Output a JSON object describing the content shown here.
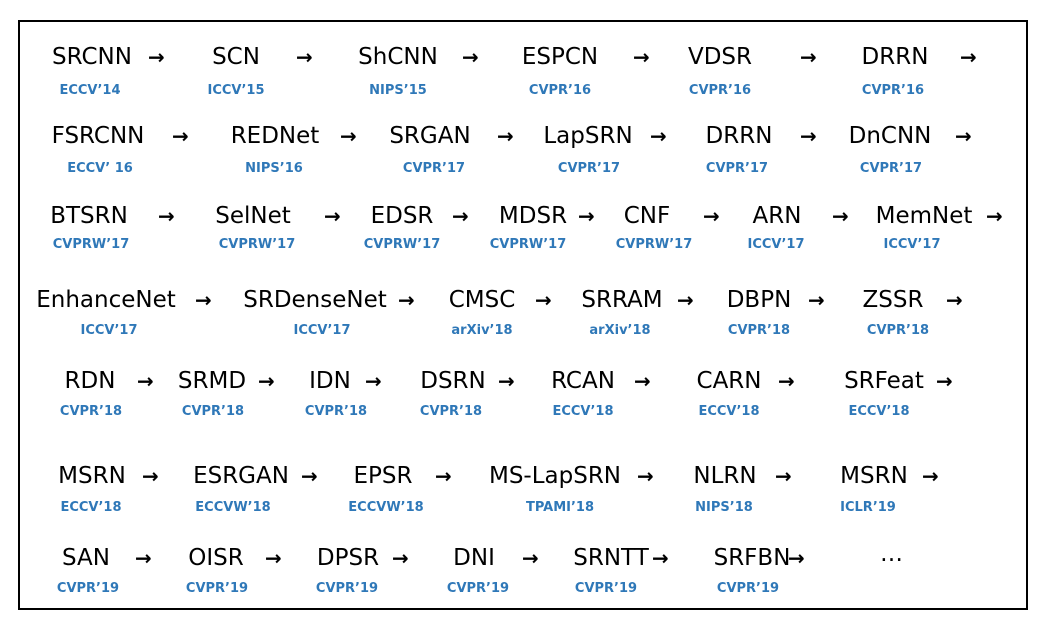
{
  "rows": [
    [
      {
        "name": "SRCNN",
        "venue": "ECCV’14"
      },
      {
        "name": "SCN",
        "venue": "ICCV’15"
      },
      {
        "name": "ShCNN",
        "venue": "NIPS’15"
      },
      {
        "name": "ESPCN",
        "venue": "CVPR’16"
      },
      {
        "name": "VDSR",
        "venue": "CVPR’16"
      },
      {
        "name": "DRRN",
        "venue": "CVPR’16"
      }
    ],
    [
      {
        "name": "FSRCNN",
        "venue": "ECCV’ 16"
      },
      {
        "name": "REDNet",
        "venue": "NIPS’16"
      },
      {
        "name": "SRGAN",
        "venue": "CVPR’17"
      },
      {
        "name": "LapSRN",
        "venue": "CVPR’17"
      },
      {
        "name": "DRRN",
        "venue": "CVPR’17"
      },
      {
        "name": "DnCNN",
        "venue": "CVPR’17"
      }
    ],
    [
      {
        "name": "BTSRN",
        "venue": "CVPRW’17"
      },
      {
        "name": "SelNet",
        "venue": "CVPRW’17"
      },
      {
        "name": "EDSR",
        "venue": "CVPRW’17"
      },
      {
        "name": "MDSR",
        "venue": "CVPRW’17"
      },
      {
        "name": "CNF",
        "venue": "CVPRW’17"
      },
      {
        "name": "ARN",
        "venue": "ICCV’17"
      },
      {
        "name": "MemNet",
        "venue": "ICCV’17"
      }
    ],
    [
      {
        "name": "EnhanceNet",
        "venue": "ICCV’17"
      },
      {
        "name": "SRDenseNet",
        "venue": "ICCV’17"
      },
      {
        "name": "CMSC",
        "venue": "arXiv’18"
      },
      {
        "name": "SRRAM",
        "venue": "arXiv’18"
      },
      {
        "name": "DBPN",
        "venue": "CVPR’18"
      },
      {
        "name": "ZSSR",
        "venue": "CVPR’18"
      }
    ],
    [
      {
        "name": "RDN",
        "venue": "CVPR’18"
      },
      {
        "name": "SRMD",
        "venue": "CVPR’18"
      },
      {
        "name": "IDN",
        "venue": "CVPR’18"
      },
      {
        "name": "DSRN",
        "venue": "CVPR’18"
      },
      {
        "name": "RCAN",
        "venue": "ECCV’18"
      },
      {
        "name": "CARN",
        "venue": "ECCV’18"
      },
      {
        "name": "SRFeat",
        "venue": "ECCV’18"
      }
    ],
    [
      {
        "name": "MSRN",
        "venue": "ECCV’18"
      },
      {
        "name": "ESRGAN",
        "venue": "ECCVW’18"
      },
      {
        "name": "EPSR",
        "venue": "ECCVW’18"
      },
      {
        "name": "MS-LapSRN",
        "venue": "TPAMI’18"
      },
      {
        "name": "NLRN",
        "venue": "NIPS’18"
      },
      {
        "name": "MSRN",
        "venue": "ICLR’19"
      }
    ],
    [
      {
        "name": "SAN",
        "venue": "CVPR’19"
      },
      {
        "name": "OISR",
        "venue": "CVPR’19"
      },
      {
        "name": "DPSR",
        "venue": "CVPR’19"
      },
      {
        "name": "DNI",
        "venue": "CVPR’19"
      },
      {
        "name": "SRNTT",
        "venue": "CVPR’19"
      },
      {
        "name": "SRFBN",
        "venue": "CVPR’19"
      }
    ]
  ],
  "arrow_glyph": "→",
  "ellipsis": "…"
}
